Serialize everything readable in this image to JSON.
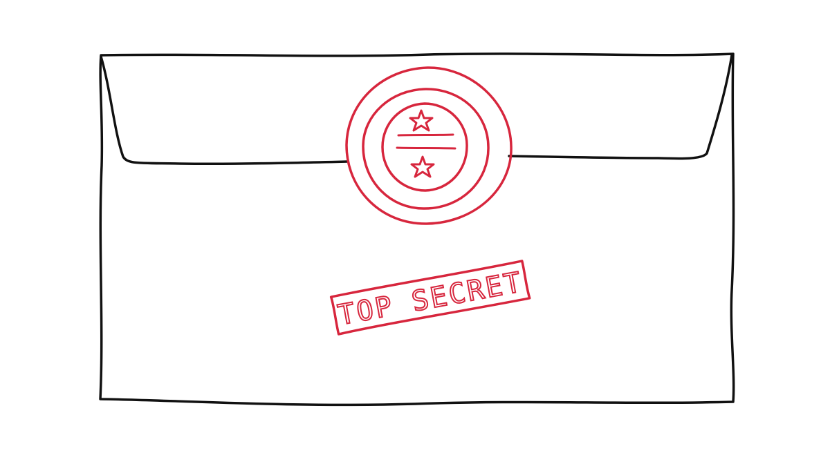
{
  "illustration": {
    "subject": "envelope",
    "stamp": {
      "text": "TOP SECRET"
    },
    "seal": {
      "star_count": 2
    }
  },
  "colors": {
    "ink": "#111111",
    "stamp_red": "#d7263d",
    "paper": "#ffffff"
  }
}
